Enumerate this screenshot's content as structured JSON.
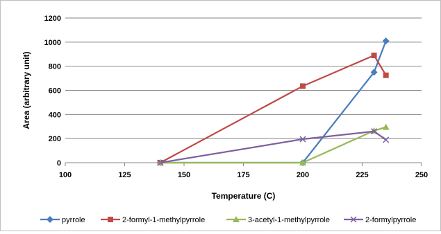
{
  "chart_data": {
    "type": "scatter",
    "xlabel": "Temperature (C)",
    "ylabel": "Area (arbitrary unit)",
    "xlim": [
      100,
      250
    ],
    "ylim": [
      0,
      1200
    ],
    "x_ticks": [
      100,
      125,
      150,
      175,
      200,
      225,
      250
    ],
    "y_ticks": [
      0,
      200,
      400,
      600,
      800,
      1000,
      1200
    ],
    "grid": "horizontal",
    "legend_position": "bottom",
    "series": [
      {
        "name": "pyrrole",
        "color": "#4a7ebb",
        "marker": "diamond",
        "points": [
          [
            140,
            0
          ],
          [
            200,
            0
          ],
          [
            230,
            750
          ],
          [
            235,
            1010
          ]
        ]
      },
      {
        "name": "2-formyl-1-methylpyrrole",
        "color": "#be4b48",
        "marker": "square",
        "points": [
          [
            140,
            0
          ],
          [
            200,
            635
          ],
          [
            230,
            890
          ],
          [
            235,
            725
          ]
        ]
      },
      {
        "name": "3-acetyl-1-methylpyrrole",
        "color": "#98b954",
        "marker": "triangle",
        "points": [
          [
            140,
            0
          ],
          [
            200,
            0
          ],
          [
            230,
            265
          ],
          [
            235,
            295
          ]
        ]
      },
      {
        "name": "2-formylpyrrole",
        "color": "#7d60a0",
        "marker": "x",
        "points": [
          [
            140,
            0
          ],
          [
            200,
            195
          ],
          [
            230,
            260
          ],
          [
            235,
            190
          ]
        ]
      }
    ]
  }
}
